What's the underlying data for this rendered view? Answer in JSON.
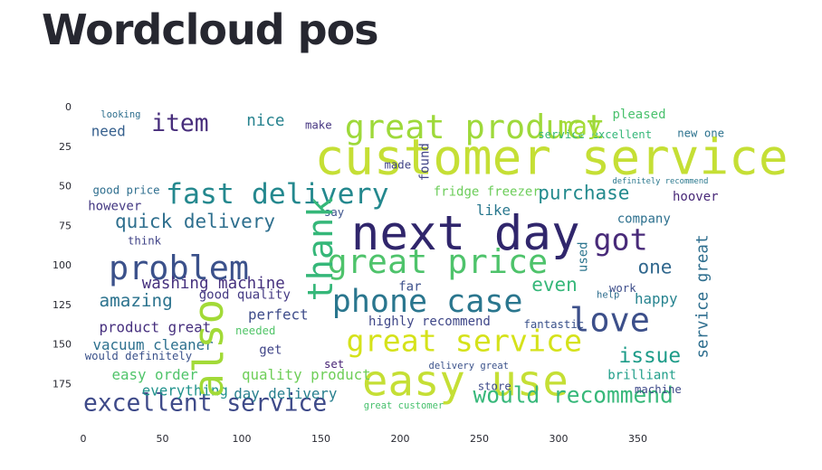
{
  "page": {
    "title": "Wordcloud pos"
  },
  "chart_data": {
    "type": "wordcloud",
    "title": "",
    "xlim": [
      0,
      400
    ],
    "ylim": [
      200,
      0
    ],
    "xticks": [
      0,
      50,
      100,
      150,
      200,
      250,
      300,
      350
    ],
    "yticks": [
      0,
      25,
      50,
      75,
      100,
      125,
      150,
      175
    ],
    "grid": false,
    "words": [
      {
        "text": "customer service",
        "x": 146,
        "y": 34,
        "size": 31,
        "color": "#c5df35"
      },
      {
        "text": "next day",
        "x": 169,
        "y": 82,
        "size": 30,
        "color": "#30266c"
      },
      {
        "text": "easy use",
        "x": 176,
        "y": 175,
        "size": 27,
        "color": "#c5df35"
      },
      {
        "text": "great product",
        "x": 165,
        "y": 14,
        "size": 21,
        "color": "#9ed93a"
      },
      {
        "text": "great price",
        "x": 154,
        "y": 99,
        "size": 21,
        "color": "#4ec36b"
      },
      {
        "text": "fast delivery",
        "x": 52,
        "y": 56,
        "size": 18,
        "color": "#24888e"
      },
      {
        "text": "phone case",
        "x": 157,
        "y": 124,
        "size": 20,
        "color": "#2a768e"
      },
      {
        "text": "great service",
        "x": 166,
        "y": 149,
        "size": 19,
        "color": "#d5e21a"
      },
      {
        "text": "problem",
        "x": 16,
        "y": 103,
        "size": 21,
        "color": "#3b518b"
      },
      {
        "text": "love",
        "x": 307,
        "y": 136,
        "size": 21,
        "color": "#3c4f8a"
      },
      {
        "text": "got",
        "x": 322,
        "y": 85,
        "size": 19,
        "color": "#482a79"
      },
      {
        "text": "item",
        "x": 43,
        "y": 11,
        "size": 15,
        "color": "#472d7b"
      },
      {
        "text": "quick delivery",
        "x": 20,
        "y": 73,
        "size": 12,
        "color": "#2e6f8e"
      },
      {
        "text": "purchase",
        "x": 287,
        "y": 55,
        "size": 12,
        "color": "#238a8d"
      },
      {
        "text": "excellent service",
        "x": 0,
        "y": 188,
        "size": 15,
        "color": "#3e4a89"
      },
      {
        "text": "would recommend",
        "x": 246,
        "y": 183,
        "size": 14,
        "color": "#37b87a"
      },
      {
        "text": "amazing",
        "x": 10,
        "y": 123,
        "size": 11,
        "color": "#2c738e"
      },
      {
        "text": "issue",
        "x": 338,
        "y": 158,
        "size": 13,
        "color": "#1e9c89"
      },
      {
        "text": "even",
        "x": 283,
        "y": 113,
        "size": 12,
        "color": "#35b779"
      },
      {
        "text": "one",
        "x": 350,
        "y": 102,
        "size": 12,
        "color": "#31688e"
      },
      {
        "text": "pleased",
        "x": 334,
        "y": 5,
        "size": 8,
        "color": "#4ac16d"
      },
      {
        "text": "nice",
        "x": 103,
        "y": 9,
        "size": 10,
        "color": "#26828e"
      },
      {
        "text": "need",
        "x": 5,
        "y": 16,
        "size": 9,
        "color": "#355f8d"
      },
      {
        "text": "good price",
        "x": 6,
        "y": 53,
        "size": 7,
        "color": "#2e6e8e"
      },
      {
        "text": "however",
        "x": 3,
        "y": 63,
        "size": 8,
        "color": "#443983"
      },
      {
        "text": "think",
        "x": 28,
        "y": 85,
        "size": 7,
        "color": "#404387"
      },
      {
        "text": "like",
        "x": 248,
        "y": 66,
        "size": 9,
        "color": "#2a788e"
      },
      {
        "text": "fridge freezer",
        "x": 221,
        "y": 54,
        "size": 8,
        "color": "#6ccd5a"
      },
      {
        "text": "company",
        "x": 337,
        "y": 71,
        "size": 8,
        "color": "#2d708e"
      },
      {
        "text": "hoover",
        "x": 372,
        "y": 57,
        "size": 8,
        "color": "#482878"
      },
      {
        "text": "washing machine",
        "x": 37,
        "y": 112,
        "size": 10,
        "color": "#46317e"
      },
      {
        "text": "good quality",
        "x": 73,
        "y": 119,
        "size": 8,
        "color": "#443a83"
      },
      {
        "text": "perfect",
        "x": 104,
        "y": 132,
        "size": 9,
        "color": "#3e4c8a"
      },
      {
        "text": "product great",
        "x": 10,
        "y": 140,
        "size": 9,
        "color": "#462f7e"
      },
      {
        "text": "vacuum cleaner",
        "x": 6,
        "y": 151,
        "size": 9,
        "color": "#2d708e"
      },
      {
        "text": "would definitely",
        "x": 1,
        "y": 158,
        "size": 7,
        "color": "#3b528b"
      },
      {
        "text": "easy order",
        "x": 18,
        "y": 170,
        "size": 9,
        "color": "#50c46a"
      },
      {
        "text": "everything",
        "x": 37,
        "y": 180,
        "size": 9,
        "color": "#20928c"
      },
      {
        "text": "day delivery",
        "x": 95,
        "y": 182,
        "size": 9,
        "color": "#277f8e"
      },
      {
        "text": "quality product",
        "x": 100,
        "y": 170,
        "size": 9,
        "color": "#6ece58"
      },
      {
        "text": "highly recommend",
        "x": 180,
        "y": 136,
        "size": 8,
        "color": "#3f4788"
      },
      {
        "text": "fantastic",
        "x": 278,
        "y": 138,
        "size": 7,
        "color": "#3b528b"
      },
      {
        "text": "happy",
        "x": 348,
        "y": 122,
        "size": 9,
        "color": "#26838f"
      },
      {
        "text": "brilliant",
        "x": 331,
        "y": 170,
        "size": 8,
        "color": "#1f9e89"
      },
      {
        "text": "machine",
        "x": 348,
        "y": 179,
        "size": 7,
        "color": "#3e4989"
      },
      {
        "text": "needed",
        "x": 96,
        "y": 142,
        "size": 7,
        "color": "#52c569"
      },
      {
        "text": "get",
        "x": 111,
        "y": 154,
        "size": 8,
        "color": "#404588"
      },
      {
        "text": "set",
        "x": 152,
        "y": 163,
        "size": 7,
        "color": "#482475"
      },
      {
        "text": "made",
        "x": 190,
        "y": 37,
        "size": 7,
        "color": "#414487"
      },
      {
        "text": "make",
        "x": 140,
        "y": 12,
        "size": 7,
        "color": "#453581"
      },
      {
        "text": "say",
        "x": 152,
        "y": 67,
        "size": 7,
        "color": "#3b528b"
      },
      {
        "text": "far",
        "x": 199,
        "y": 114,
        "size": 8,
        "color": "#3c508b"
      },
      {
        "text": "work",
        "x": 332,
        "y": 115,
        "size": 7,
        "color": "#3d4d8a"
      },
      {
        "text": "new one",
        "x": 375,
        "y": 17,
        "size": 7,
        "color": "#2c728e"
      },
      {
        "text": "service excellent",
        "x": 287,
        "y": 18,
        "size": 7,
        "color": "#35b779"
      },
      {
        "text": "delivery great",
        "x": 218,
        "y": 164,
        "size": 6,
        "color": "#3b528b"
      },
      {
        "text": "great customer",
        "x": 177,
        "y": 189,
        "size": 6,
        "color": "#48c16e"
      },
      {
        "text": "store",
        "x": 249,
        "y": 177,
        "size": 7,
        "color": "#3e4a89"
      },
      {
        "text": "looking",
        "x": 11,
        "y": 5,
        "size": 6,
        "color": "#2e6f8e"
      },
      {
        "text": "help",
        "x": 324,
        "y": 119,
        "size": 6,
        "color": "#2e6e8e"
      },
      {
        "text": "may",
        "x": 300,
        "y": 13,
        "size": 15,
        "color": "#a5db36"
      },
      {
        "text": "definitely recommend",
        "x": 334,
        "y": 47,
        "size": 5,
        "color": "#2a788e"
      }
    ],
    "vertical_words": [
      {
        "text": "thank",
        "x": 157,
        "y": 90,
        "size": 22,
        "color": "#35b779"
      },
      {
        "text": "also",
        "x": 88,
        "y": 153,
        "size": 26,
        "color": "#a2da37"
      },
      {
        "text": "service great",
        "x": 394,
        "y": 120,
        "size": 10,
        "color": "#2e6e8e"
      },
      {
        "text": "used",
        "x": 318,
        "y": 95,
        "size": 8,
        "color": "#2b758e"
      },
      {
        "text": "found",
        "x": 218,
        "y": 35,
        "size": 8,
        "color": "#414487"
      }
    ]
  }
}
